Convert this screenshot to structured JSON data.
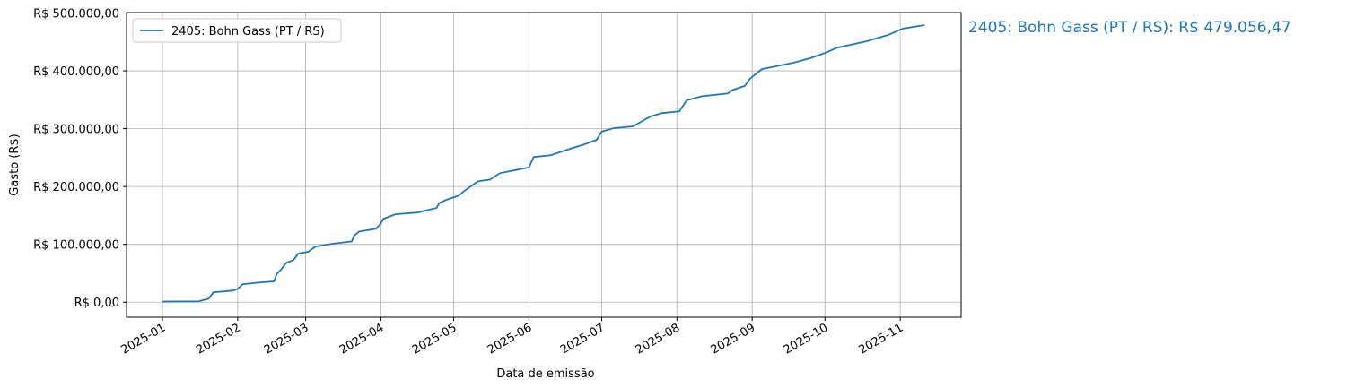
{
  "chart_data": {
    "type": "line",
    "ylabel": "Gasto (R$)",
    "xlabel": "Data de emissão",
    "annotation": "2405: Bohn Gass (PT / RS): R$ 479.056,47",
    "x": [
      1,
      16,
      20,
      22,
      30,
      32,
      34,
      41,
      47,
      48,
      50,
      52,
      55,
      57,
      61,
      64,
      71,
      79,
      80,
      82,
      89,
      91,
      92,
      97,
      106,
      114,
      115,
      118,
      123,
      125,
      131,
      136,
      140,
      146,
      152,
      154,
      161,
      168,
      175,
      180,
      182,
      187,
      195,
      197,
      202,
      207,
      214,
      217,
      223,
      234,
      236,
      241,
      243,
      248,
      254,
      261,
      268,
      274,
      279,
      291,
      300,
      306,
      315
    ],
    "series": [
      {
        "name": "2405: Bohn Gass (PT / RS)",
        "color": "#1f77b4",
        "values": [
          1000,
          1500,
          6000,
          17000,
          20000,
          23000,
          31000,
          34000,
          36000,
          48000,
          57000,
          68000,
          73000,
          84000,
          87000,
          96000,
          101000,
          105000,
          115000,
          122000,
          127000,
          136000,
          144000,
          152000,
          155000,
          163000,
          171000,
          177000,
          184000,
          191000,
          209000,
          212000,
          223000,
          228000,
          233000,
          251000,
          254000,
          264000,
          273000,
          281000,
          295000,
          301000,
          304000,
          309000,
          321000,
          327000,
          330000,
          349000,
          356000,
          361000,
          367000,
          374000,
          386000,
          403000,
          408000,
          414000,
          422000,
          431000,
          440000,
          451000,
          462000,
          473000,
          479056.47
        ]
      }
    ],
    "xlim": [
      -13.8,
      330.1
    ],
    "xticks": [
      {
        "value": 1,
        "label": "2025-01"
      },
      {
        "value": 32,
        "label": "2025-02"
      },
      {
        "value": 60,
        "label": "2025-03"
      },
      {
        "value": 91,
        "label": "2025-04"
      },
      {
        "value": 121,
        "label": "2025-05"
      },
      {
        "value": 152,
        "label": "2025-06"
      },
      {
        "value": 182,
        "label": "2025-07"
      },
      {
        "value": 213,
        "label": "2025-08"
      },
      {
        "value": 244,
        "label": "2025-09"
      },
      {
        "value": 274,
        "label": "2025-10"
      },
      {
        "value": 305,
        "label": "2025-11"
      }
    ],
    "ylim": [
      -26000,
      500800
    ],
    "yticks": [
      {
        "value": 0,
        "label": "R$ 0,00"
      },
      {
        "value": 100000,
        "label": "R$ 100.000,00"
      },
      {
        "value": 200000,
        "label": "R$ 200.000,00"
      },
      {
        "value": 300000,
        "label": "R$ 300.000,00"
      },
      {
        "value": 400000,
        "label": "R$ 400.000,00"
      },
      {
        "value": 500000,
        "label": "R$ 500.000,00"
      }
    ],
    "grid": true,
    "legend": "upper left"
  }
}
